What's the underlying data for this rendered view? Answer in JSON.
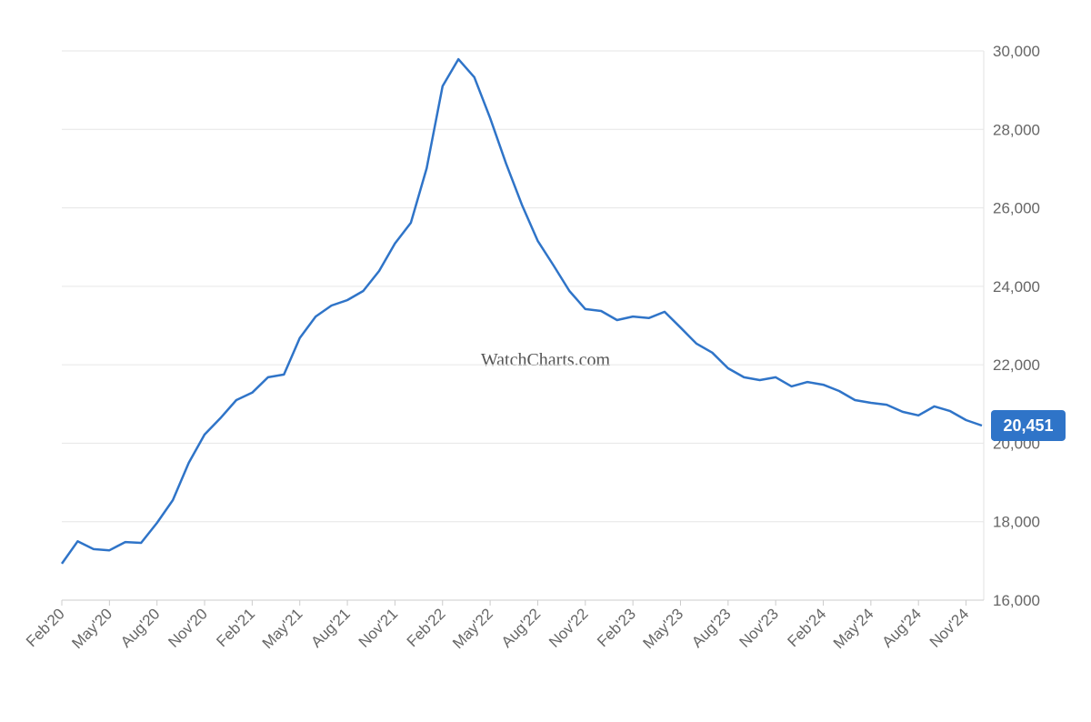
{
  "chart_data": {
    "type": "line",
    "watermark": "WatchCharts.com",
    "x": [
      "2020-02",
      "2020-03",
      "2020-04",
      "2020-05",
      "2020-06",
      "2020-07",
      "2020-08",
      "2020-09",
      "2020-10",
      "2020-11",
      "2020-12",
      "2021-01",
      "2021-02",
      "2021-03",
      "2021-04",
      "2021-05",
      "2021-06",
      "2021-07",
      "2021-08",
      "2021-09",
      "2021-10",
      "2021-11",
      "2021-12",
      "2022-01",
      "2022-02",
      "2022-03",
      "2022-04",
      "2022-05",
      "2022-06",
      "2022-07",
      "2022-08",
      "2022-09",
      "2022-10",
      "2022-11",
      "2022-12",
      "2023-01",
      "2023-02",
      "2023-03",
      "2023-04",
      "2023-05",
      "2023-06",
      "2023-07",
      "2023-08",
      "2023-09",
      "2023-10",
      "2023-11",
      "2023-12",
      "2024-01",
      "2024-02",
      "2024-03",
      "2024-04",
      "2024-05",
      "2024-06",
      "2024-07",
      "2024-08",
      "2024-09",
      "2024-10",
      "2024-11",
      "2024-12"
    ],
    "series": [
      {
        "color": "#2f74c8",
        "values": [
          16930,
          17500,
          17300,
          17270,
          17480,
          17460,
          17970,
          18550,
          19500,
          20220,
          20640,
          21100,
          21290,
          21680,
          21750,
          22680,
          23230,
          23510,
          23650,
          23880,
          24390,
          25090,
          25620,
          27010,
          29100,
          29790,
          29330,
          28290,
          27130,
          26080,
          25160,
          24530,
          23880,
          23420,
          23370,
          23140,
          23230,
          23190,
          23350,
          22950,
          22540,
          22310,
          21910,
          21680,
          21610,
          21680,
          21450,
          21560,
          21490,
          21330,
          21100,
          21030,
          20980,
          20800,
          20710,
          20940,
          20820,
          20590,
          20451
        ],
        "value_labels": [
          null,
          null,
          null,
          null,
          null,
          null,
          null,
          null,
          null,
          null,
          null,
          null,
          null,
          null,
          null,
          null,
          null,
          null,
          null,
          null,
          null,
          null,
          null,
          null,
          null,
          null,
          null,
          null,
          null,
          null,
          null,
          null,
          null,
          null,
          null,
          null,
          null,
          null,
          null,
          null,
          null,
          null,
          null,
          null,
          null,
          null,
          null,
          null,
          null,
          null,
          null,
          null,
          null,
          null,
          null,
          null,
          null,
          null,
          "20,451"
        ]
      }
    ],
    "xlim": [
      "2020-02",
      "2024-12"
    ],
    "xticks": [
      {
        "value": "2020-02",
        "label": "Feb'20"
      },
      {
        "value": "2020-05",
        "label": "May'20"
      },
      {
        "value": "2020-08",
        "label": "Aug'20"
      },
      {
        "value": "2020-11",
        "label": "Nov'20"
      },
      {
        "value": "2021-02",
        "label": "Feb'21"
      },
      {
        "value": "2021-05",
        "label": "May'21"
      },
      {
        "value": "2021-08",
        "label": "Aug'21"
      },
      {
        "value": "2021-11",
        "label": "Nov'21"
      },
      {
        "value": "2022-02",
        "label": "Feb'22"
      },
      {
        "value": "2022-05",
        "label": "May'22"
      },
      {
        "value": "2022-08",
        "label": "Aug'22"
      },
      {
        "value": "2022-11",
        "label": "Nov'22"
      },
      {
        "value": "2023-02",
        "label": "Feb'23"
      },
      {
        "value": "2023-05",
        "label": "May'23"
      },
      {
        "value": "2023-08",
        "label": "Aug'23"
      },
      {
        "value": "2023-11",
        "label": "Nov'23"
      },
      {
        "value": "2024-02",
        "label": "Feb'24"
      },
      {
        "value": "2024-05",
        "label": "May'24"
      },
      {
        "value": "2024-08",
        "label": "Aug'24"
      },
      {
        "value": "2024-11",
        "label": "Nov'24"
      }
    ],
    "ylim": [
      16000,
      30000
    ],
    "yticks": [
      {
        "value": 16000,
        "label": "16,000"
      },
      {
        "value": 18000,
        "label": "18,000"
      },
      {
        "value": 20000,
        "label": "20,000"
      },
      {
        "value": 22000,
        "label": "22,000"
      },
      {
        "value": 24000,
        "label": "24,000"
      },
      {
        "value": 26000,
        "label": "26,000"
      },
      {
        "value": 28000,
        "label": "28,000"
      },
      {
        "value": 30000,
        "label": "30,000"
      }
    ],
    "grid": true
  }
}
